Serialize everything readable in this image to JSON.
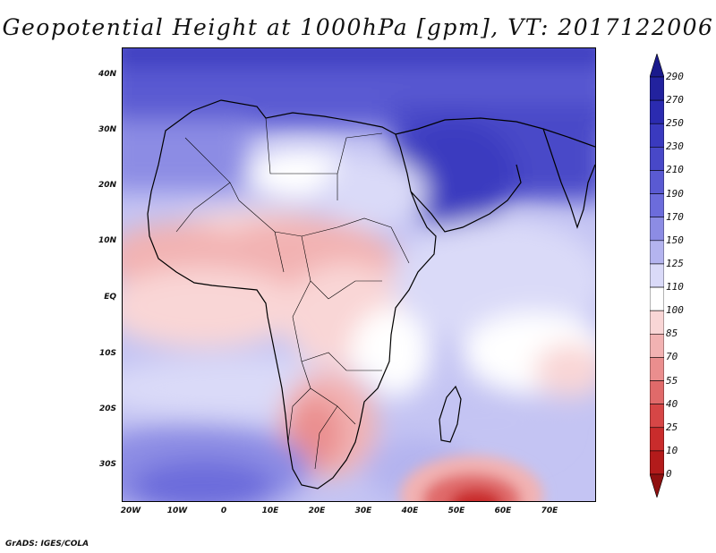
{
  "title": "Geopotential Height at 1000hPa [gpm], VT: 2017122006",
  "footer": "GrADS: IGES/COLA",
  "axes": {
    "lat_labels": [
      "40N",
      "30N",
      "20N",
      "10N",
      "EQ",
      "10S",
      "20S",
      "30S"
    ],
    "lat_values": [
      40,
      30,
      20,
      10,
      0,
      -10,
      -20,
      -30
    ],
    "lon_labels": [
      "20W",
      "10W",
      "0",
      "10E",
      "20E",
      "30E",
      "40E",
      "50E",
      "60E",
      "70E"
    ],
    "lon_values": [
      -20,
      -10,
      0,
      10,
      20,
      30,
      40,
      50,
      60,
      70
    ],
    "lon_range": [
      -22,
      80
    ],
    "lat_range": [
      -37,
      45
    ]
  },
  "colorbar": {
    "labels": [
      "290",
      "270",
      "250",
      "230",
      "210",
      "190",
      "170",
      "150",
      "125",
      "110",
      "100",
      "85",
      "70",
      "55",
      "40",
      "25",
      "10",
      "0"
    ],
    "colors": [
      "#1a1a8c",
      "#22229e",
      "#2b2bb0",
      "#3a3abf",
      "#4848c8",
      "#5a5ad2",
      "#6c6cdb",
      "#8c8ce4",
      "#b4b4ef",
      "#dadaf8",
      "#ffffff",
      "#f9d6d6",
      "#f2b2b2",
      "#ea8e8e",
      "#e06a6a",
      "#d64646",
      "#c92c2c",
      "#b31b1b",
      "#8f1010"
    ]
  }
}
